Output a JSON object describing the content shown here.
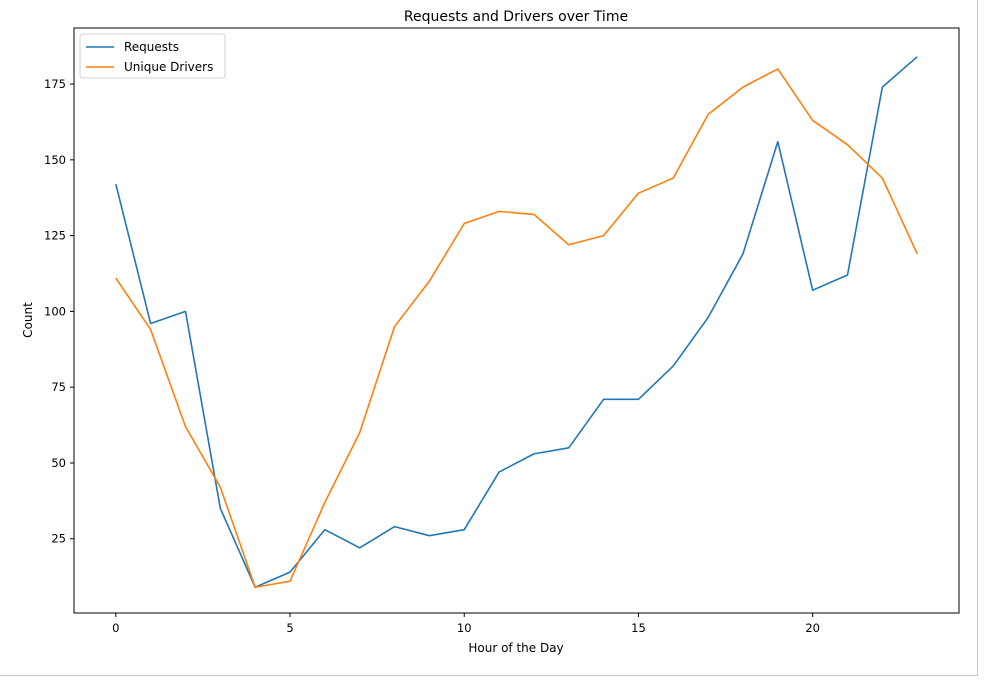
{
  "chart_data": {
    "type": "line",
    "title": "Requests and Drivers over Time",
    "xlabel": "Hour of the Day",
    "ylabel": "Count",
    "x": [
      0,
      1,
      2,
      3,
      4,
      5,
      6,
      7,
      8,
      9,
      10,
      11,
      12,
      13,
      14,
      15,
      16,
      17,
      18,
      19,
      20,
      21,
      22,
      23
    ],
    "xlim": [
      -1.2,
      24.2
    ],
    "ylim": [
      0.5,
      193.5
    ],
    "xticks": [
      0,
      5,
      10,
      15,
      20
    ],
    "yticks": [
      25,
      50,
      75,
      100,
      125,
      150,
      175
    ],
    "series": [
      {
        "name": "Requests",
        "color": "#1f77b4",
        "values": [
          142,
          96,
          100,
          35,
          9,
          14,
          28,
          22,
          29,
          26,
          28,
          47,
          53,
          55,
          71,
          71,
          82,
          98,
          119,
          156,
          107,
          112,
          174,
          184
        ]
      },
      {
        "name": "Unique Drivers",
        "color": "#ff7f0e",
        "values": [
          111,
          94,
          62,
          42,
          9,
          11,
          37,
          60,
          95,
          110,
          129,
          133,
          132,
          122,
          125,
          139,
          144,
          165,
          174,
          180,
          163,
          155,
          144,
          119
        ]
      }
    ],
    "legend": "top-left",
    "grid": false
  }
}
